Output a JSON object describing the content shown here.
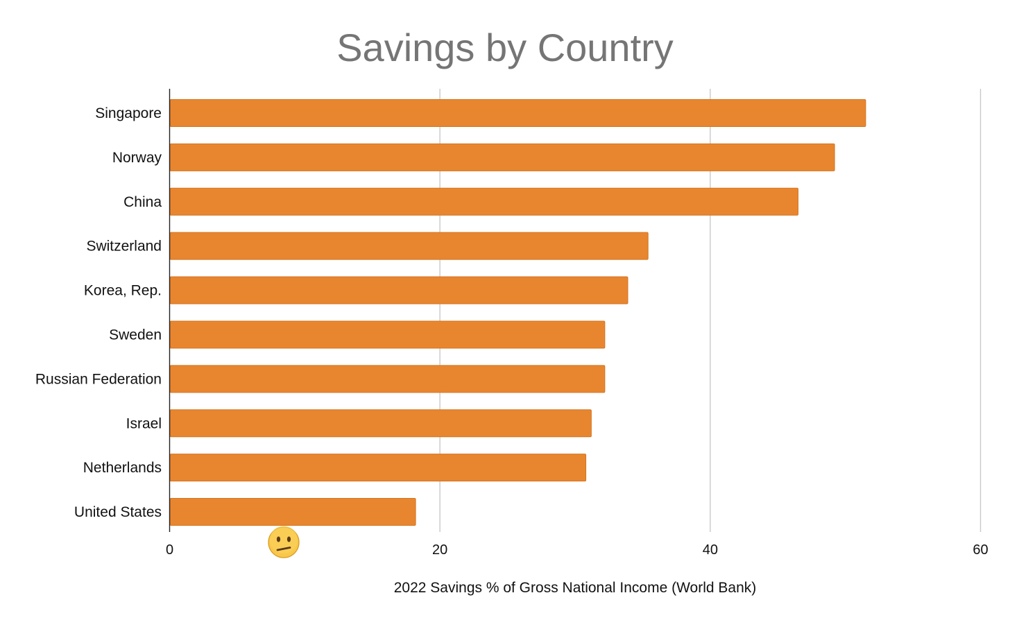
{
  "chart_data": {
    "type": "bar",
    "orientation": "horizontal",
    "title": "Savings by Country",
    "xlabel": "2022 Savings % of Gross National Income (World Bank)",
    "ylabel": "",
    "xlim": [
      0,
      60
    ],
    "xticks": [
      0,
      20,
      40,
      60
    ],
    "grid": true,
    "legend": "none",
    "categories": [
      "Singapore",
      "Norway",
      "China",
      "Switzerland",
      "Korea, Rep.",
      "Sweden",
      "Russian Federation",
      "Israel",
      "Netherlands",
      "United States"
    ],
    "values": [
      51.5,
      49.2,
      46.5,
      35.4,
      33.9,
      32.2,
      32.2,
      31.2,
      30.8,
      18.2
    ],
    "bar_color": "#E8862F",
    "bar_stroke": "#D4731F",
    "annotation_icon": "confused-face-emoji"
  }
}
